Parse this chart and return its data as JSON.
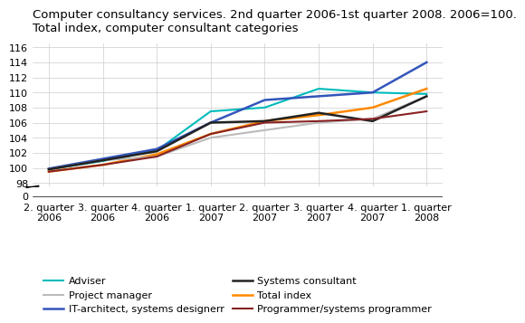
{
  "title": "Computer consultancy services. 2nd quarter 2006-1st quarter 2008. 2006=100.\nTotal index, computer consultant categories",
  "x_labels": [
    "2. quarter\n2006",
    "3. quarter\n2006",
    "4. quarter\n2006",
    "1. quarter\n2007",
    "2. quarter\n2007",
    "3. quarter\n2007",
    "4. quarter\n2007",
    "1. quarter\n2008"
  ],
  "series": [
    {
      "name": "Adviser",
      "values": [
        99.8,
        100.9,
        102.3,
        107.5,
        108.0,
        110.5,
        110.0,
        109.8
      ],
      "color": "#00BBBB",
      "linewidth": 1.5
    },
    {
      "name": "IT-architect, systems designerr",
      "values": [
        99.9,
        101.2,
        102.5,
        106.0,
        109.0,
        109.5,
        110.0,
        114.0
      ],
      "color": "#3355BB",
      "linewidth": 1.8
    },
    {
      "name": "Total index",
      "values": [
        99.5,
        100.4,
        101.8,
        104.5,
        106.2,
        107.0,
        108.0,
        110.5
      ],
      "color": "#FF8800",
      "linewidth": 1.8
    },
    {
      "name": "Project manager",
      "values": [
        99.8,
        101.0,
        101.5,
        104.0,
        105.0,
        106.0,
        106.5,
        109.5
      ],
      "color": "#BBBBBB",
      "linewidth": 1.5
    },
    {
      "name": "Systems consultant",
      "values": [
        99.8,
        101.0,
        102.2,
        106.0,
        106.2,
        107.3,
        106.2,
        109.5
      ],
      "color": "#222222",
      "linewidth": 1.8
    },
    {
      "name": "Programmer/systems programmer",
      "values": [
        99.5,
        100.4,
        101.5,
        104.5,
        106.0,
        106.2,
        106.5,
        107.5
      ],
      "color": "#882222",
      "linewidth": 1.5
    }
  ],
  "upper_ylim": [
    97.5,
    116.5
  ],
  "upper_yticks": [
    98,
    100,
    102,
    104,
    106,
    108,
    110,
    112,
    114,
    116
  ],
  "lower_ylim": [
    -0.5,
    2.0
  ],
  "lower_ytick": 0,
  "background_color": "#ffffff",
  "grid_color": "#cccccc",
  "title_fontsize": 9.5,
  "legend_fontsize": 8.0,
  "tick_fontsize": 8.0
}
